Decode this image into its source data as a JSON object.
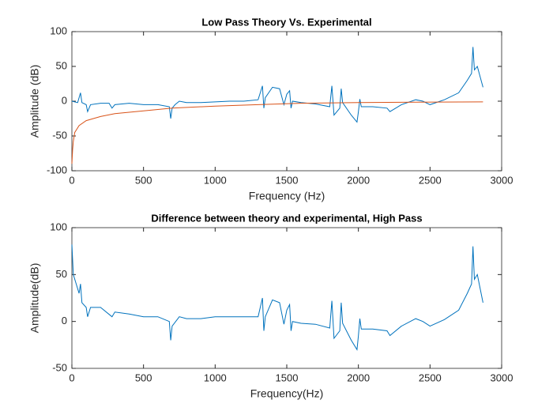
{
  "chart_data": [
    {
      "type": "line",
      "title": "Low Pass Theory Vs. Experimental",
      "xlabel": "Frequency (Hz)",
      "ylabel": "Amplitude (dB)",
      "xlim": [
        0,
        3000
      ],
      "xticks": [
        0,
        500,
        1000,
        1500,
        2000,
        2500,
        3000
      ],
      "ylim": [
        -100,
        100
      ],
      "yticks": [
        -100,
        -50,
        0,
        50,
        100
      ],
      "series": [
        {
          "color": "#0072bd",
          "x": [
            0,
            40,
            60,
            70,
            100,
            110,
            130,
            200,
            260,
            280,
            300,
            400,
            500,
            600,
            680,
            690,
            700,
            720,
            750,
            800,
            900,
            1000,
            1100,
            1200,
            1300,
            1330,
            1340,
            1350,
            1400,
            1450,
            1480,
            1500,
            1520,
            1530,
            1540,
            1600,
            1700,
            1800,
            1815,
            1830,
            1870,
            1880,
            1890,
            1950,
            1990,
            2000,
            2010,
            2020,
            2100,
            2200,
            2220,
            2300,
            2400,
            2450,
            2500,
            2600,
            2700,
            2760,
            2790,
            2800,
            2810,
            2830,
            2850,
            2870
          ],
          "values": [
            0,
            -2,
            12,
            -2,
            -5,
            -15,
            -5,
            -3,
            -3,
            -10,
            -5,
            -3,
            -5,
            -5,
            -8,
            -25,
            -10,
            -5,
            0,
            -2,
            -2,
            -1,
            0,
            0,
            2,
            22,
            -10,
            5,
            20,
            18,
            -5,
            10,
            15,
            -10,
            0,
            -2,
            -4,
            -8,
            22,
            -20,
            -10,
            18,
            -2,
            -20,
            -30,
            -15,
            3,
            -8,
            -8,
            -10,
            -15,
            -5,
            2,
            0,
            -5,
            2,
            12,
            30,
            40,
            78,
            45,
            50,
            35,
            20
          ]
        },
        {
          "color": "#d95319",
          "x": [
            0,
            5,
            10,
            20,
            50,
            100,
            200,
            300,
            500,
            700,
            1000,
            1300,
            1600,
            2000,
            2400,
            2870
          ],
          "values": [
            -90,
            -70,
            -58,
            -45,
            -35,
            -28,
            -22,
            -18,
            -14,
            -10,
            -7,
            -5,
            -3,
            -2,
            -1.5,
            -1
          ]
        }
      ]
    },
    {
      "type": "line",
      "title": "Difference between theory and experimental, High Pass",
      "xlabel": "Frequency(Hz)",
      "ylabel": "Amplitude(dB)",
      "xlim": [
        0,
        3000
      ],
      "xticks": [
        0,
        500,
        1000,
        1500,
        2000,
        2500,
        3000
      ],
      "ylim": [
        -50,
        100
      ],
      "yticks": [
        -50,
        0,
        50,
        100
      ],
      "series": [
        {
          "color": "#0072bd",
          "x": [
            0,
            10,
            50,
            60,
            70,
            100,
            110,
            130,
            200,
            280,
            300,
            400,
            500,
            600,
            680,
            690,
            700,
            750,
            800,
            900,
            1000,
            1100,
            1200,
            1300,
            1330,
            1340,
            1350,
            1400,
            1450,
            1480,
            1500,
            1520,
            1530,
            1540,
            1600,
            1700,
            1800,
            1815,
            1830,
            1870,
            1880,
            1890,
            1950,
            1990,
            2000,
            2010,
            2020,
            2100,
            2200,
            2220,
            2300,
            2400,
            2450,
            2500,
            2600,
            2700,
            2760,
            2790,
            2800,
            2810,
            2830,
            2850,
            2870
          ],
          "values": [
            82,
            50,
            30,
            40,
            20,
            15,
            5,
            15,
            15,
            5,
            10,
            8,
            5,
            5,
            0,
            -20,
            -5,
            5,
            3,
            3,
            5,
            5,
            5,
            5,
            25,
            -10,
            5,
            23,
            20,
            -3,
            12,
            18,
            -10,
            0,
            -2,
            -3,
            -7,
            22,
            -18,
            -10,
            20,
            -2,
            -20,
            -30,
            -15,
            3,
            -8,
            -8,
            -10,
            -15,
            -5,
            3,
            0,
            -5,
            2,
            12,
            30,
            40,
            80,
            45,
            50,
            35,
            20
          ]
        }
      ]
    }
  ]
}
